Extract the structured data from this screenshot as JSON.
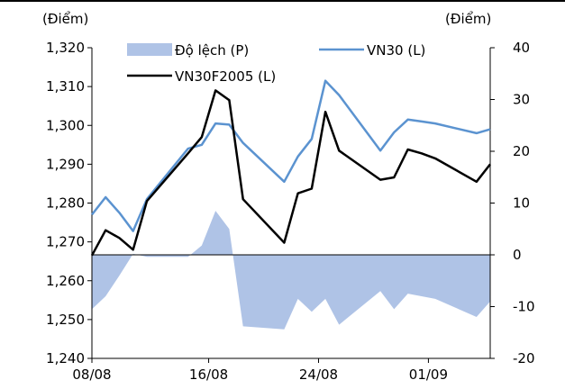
{
  "chart_data": {
    "type": "line+area",
    "left_unit": "(Điểm)",
    "right_unit": "(Điểm)",
    "x": [
      8,
      9,
      10,
      11,
      12,
      15,
      16,
      17,
      18,
      19,
      22,
      23,
      24,
      25,
      26,
      29,
      30,
      31,
      32,
      33,
      36,
      37
    ],
    "xticks": [
      {
        "label": "08/08",
        "at": 8
      },
      {
        "label": "16/08",
        "at": 16.5
      },
      {
        "label": "24/08",
        "at": 24.5
      },
      {
        "label": "01/09",
        "at": 32.5
      }
    ],
    "left_axis": {
      "min": 1240,
      "max": 1320,
      "step": 10,
      "ticks": [
        "1,240",
        "1,250",
        "1,260",
        "1,270",
        "1,280",
        "1,290",
        "1,300",
        "1,310",
        "1,320"
      ]
    },
    "right_axis": {
      "min": -20,
      "max": 40,
      "step": 10,
      "ticks": [
        "-20",
        "-10",
        "0",
        "10",
        "20",
        "30",
        "40"
      ]
    },
    "series": [
      {
        "name": "Độ lệch (P)",
        "kind": "area",
        "axis": "right",
        "color": "#afc3e6",
        "values": [
          -10.5,
          -8,
          -4,
          0.2,
          -0.4,
          -0.4,
          1.8,
          8.5,
          5,
          -13.8,
          -14.4,
          -8.5,
          -11,
          -8.5,
          -13.5,
          -7,
          -10.5,
          -7.5,
          -8,
          -8.5,
          -12,
          -9
        ]
      },
      {
        "name": "VN30 (L)",
        "kind": "line",
        "axis": "left",
        "color": "#5b93d0",
        "values": [
          1277,
          1281.5,
          1277.5,
          1272.8,
          1281,
          1294,
          1295,
          1300.5,
          1300.2,
          1295.5,
          1285.5,
          1292,
          1296.5,
          1311.5,
          1307.8,
          1293.5,
          1298.2,
          1301.5,
          1301,
          1300.5,
          1298,
          1299
        ]
      },
      {
        "name": "VN30F2005 (L)",
        "kind": "line",
        "axis": "left",
        "color": "#000000",
        "values": [
          1266.5,
          1273,
          1271,
          1268,
          1280.5,
          1292.8,
          1297,
          1309,
          1306.5,
          1281,
          1269.8,
          1282.5,
          1283.7,
          1303.5,
          1293.5,
          1286,
          1286.6,
          1293.8,
          1292.8,
          1291.5,
          1285.5,
          1290
        ]
      }
    ]
  }
}
